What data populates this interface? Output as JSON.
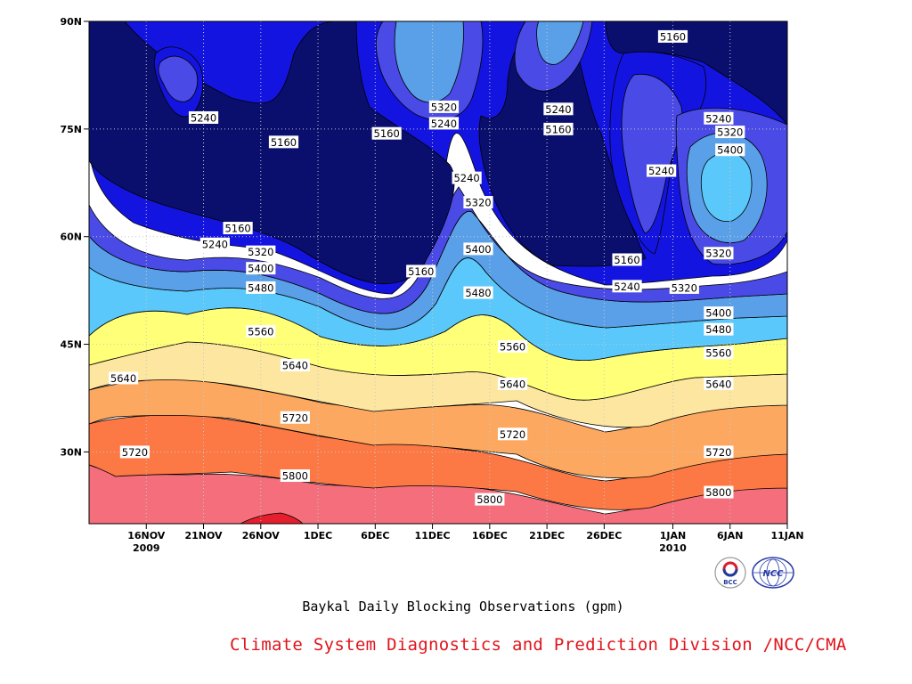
{
  "chart_data": {
    "type": "contour",
    "caption": "Baykal Daily Blocking Observations (gpm)",
    "variable_units": "gpm",
    "x_axis": {
      "type": "date",
      "range": [
        "2009-11-11",
        "2010-01-11"
      ],
      "ticks": [
        {
          "date": "2009-11-16",
          "label": "16NOV",
          "sublabel": "2009"
        },
        {
          "date": "2009-11-21",
          "label": "21NOV",
          "sublabel": ""
        },
        {
          "date": "2009-11-26",
          "label": "26NOV",
          "sublabel": ""
        },
        {
          "date": "2009-12-01",
          "label": "1DEC",
          "sublabel": ""
        },
        {
          "date": "2009-12-06",
          "label": "6DEC",
          "sublabel": ""
        },
        {
          "date": "2009-12-11",
          "label": "11DEC",
          "sublabel": ""
        },
        {
          "date": "2009-12-16",
          "label": "16DEC",
          "sublabel": ""
        },
        {
          "date": "2009-12-21",
          "label": "21DEC",
          "sublabel": ""
        },
        {
          "date": "2009-12-26",
          "label": "26DEC",
          "sublabel": ""
        },
        {
          "date": "2010-01-01",
          "label": "1JAN",
          "sublabel": "2010"
        },
        {
          "date": "2010-01-06",
          "label": "6JAN",
          "sublabel": ""
        },
        {
          "date": "2010-01-11",
          "label": "11JAN",
          "sublabel": ""
        }
      ]
    },
    "y_axis": {
      "type": "latitude",
      "range": [
        20,
        90
      ],
      "ticks": [
        {
          "value": 30,
          "label": "30N"
        },
        {
          "value": 45,
          "label": "45N"
        },
        {
          "value": 60,
          "label": "60N"
        },
        {
          "value": 75,
          "label": "75N"
        },
        {
          "value": 90,
          "label": "90N"
        }
      ]
    },
    "grid": true,
    "contour_levels": [
      5160,
      5240,
      5320,
      5400,
      5480,
      5560,
      5640,
      5720,
      5800,
      5880
    ],
    "fill_colors": {
      "below_5160": "#0a0f6e",
      "5160_5240": "#1414e0",
      "5240_5320": "#4a4ae6",
      "5320_5400": "#5aa0e8",
      "5400_5480": "#5ac8fa",
      "5480_5560": "#ffff78",
      "5560_5640": "#fde6a0",
      "5640_5720": "#fca860",
      "5720_5800": "#fc7844",
      "5800_5880": "#f46e7c",
      "above_5880": "#e61e2e"
    },
    "contour_labels": [
      {
        "text": "5240",
        "date": "2009-11-21",
        "lat": 76.6
      },
      {
        "text": "5160",
        "date": "2009-11-28",
        "lat": 73.2
      },
      {
        "text": "5160",
        "date": "2009-11-24",
        "lat": 61.2
      },
      {
        "text": "5240",
        "date": "2009-11-22",
        "lat": 59.0
      },
      {
        "text": "5320",
        "date": "2009-11-26",
        "lat": 57.9
      },
      {
        "text": "5400",
        "date": "2009-11-26",
        "lat": 55.6
      },
      {
        "text": "5480",
        "date": "2009-11-26",
        "lat": 52.9
      },
      {
        "text": "5560",
        "date": "2009-11-26",
        "lat": 46.8
      },
      {
        "text": "5640",
        "date": "2009-11-29",
        "lat": 42.1
      },
      {
        "text": "5640",
        "date": "2009-11-14",
        "lat": 40.3
      },
      {
        "text": "5720",
        "date": "2009-11-29",
        "lat": 34.8
      },
      {
        "text": "5720",
        "date": "2009-11-15",
        "lat": 30.0
      },
      {
        "text": "5800",
        "date": "2009-11-29",
        "lat": 26.7
      },
      {
        "text": "5160",
        "date": "2009-12-07",
        "lat": 74.4
      },
      {
        "text": "5160",
        "date": "2009-12-10",
        "lat": 55.2
      },
      {
        "text": "5320",
        "date": "2009-12-12",
        "lat": 78.1
      },
      {
        "text": "5240",
        "date": "2009-12-12",
        "lat": 75.8
      },
      {
        "text": "5240",
        "date": "2009-12-14",
        "lat": 68.2
      },
      {
        "text": "5320",
        "date": "2009-12-15",
        "lat": 64.8
      },
      {
        "text": "5400",
        "date": "2009-12-15",
        "lat": 58.3
      },
      {
        "text": "5480",
        "date": "2009-12-15",
        "lat": 52.2
      },
      {
        "text": "5560",
        "date": "2009-12-18",
        "lat": 44.7
      },
      {
        "text": "5640",
        "date": "2009-12-18",
        "lat": 39.5
      },
      {
        "text": "5720",
        "date": "2009-12-18",
        "lat": 32.5
      },
      {
        "text": "5800",
        "date": "2009-12-16",
        "lat": 23.4
      },
      {
        "text": "5240",
        "date": "2009-12-22",
        "lat": 77.8
      },
      {
        "text": "5160",
        "date": "2009-12-22",
        "lat": 75.0
      },
      {
        "text": "5160",
        "date": "2009-12-28",
        "lat": 56.8
      },
      {
        "text": "5240",
        "date": "2009-12-28",
        "lat": 53.1
      },
      {
        "text": "5240",
        "date": "2009-12-31",
        "lat": 69.2
      },
      {
        "text": "5160",
        "date": "2010-01-01",
        "lat": 87.9
      },
      {
        "text": "5320",
        "date": "2010-01-02",
        "lat": 52.9
      },
      {
        "text": "5240",
        "date": "2010-01-05",
        "lat": 76.5
      },
      {
        "text": "5320",
        "date": "2010-01-06",
        "lat": 74.6
      },
      {
        "text": "5400",
        "date": "2010-01-06",
        "lat": 72.1
      },
      {
        "text": "5320",
        "date": "2010-01-05",
        "lat": 57.7
      },
      {
        "text": "5400",
        "date": "2010-01-05",
        "lat": 49.4
      },
      {
        "text": "5480",
        "date": "2010-01-05",
        "lat": 47.1
      },
      {
        "text": "5560",
        "date": "2010-01-05",
        "lat": 43.8
      },
      {
        "text": "5640",
        "date": "2010-01-05",
        "lat": 39.5
      },
      {
        "text": "5720",
        "date": "2010-01-05",
        "lat": 30.0
      },
      {
        "text": "5800",
        "date": "2010-01-05",
        "lat": 24.4
      }
    ]
  },
  "footer": {
    "caption": "Baykal Daily Blocking Observations (gpm)",
    "credit": "Climate System Diagnostics and Prediction Division /NCC/CMA"
  },
  "logos": [
    {
      "name": "bcc-logo",
      "text": "BCC"
    },
    {
      "name": "ncc-logo",
      "text": "NCC"
    }
  ]
}
